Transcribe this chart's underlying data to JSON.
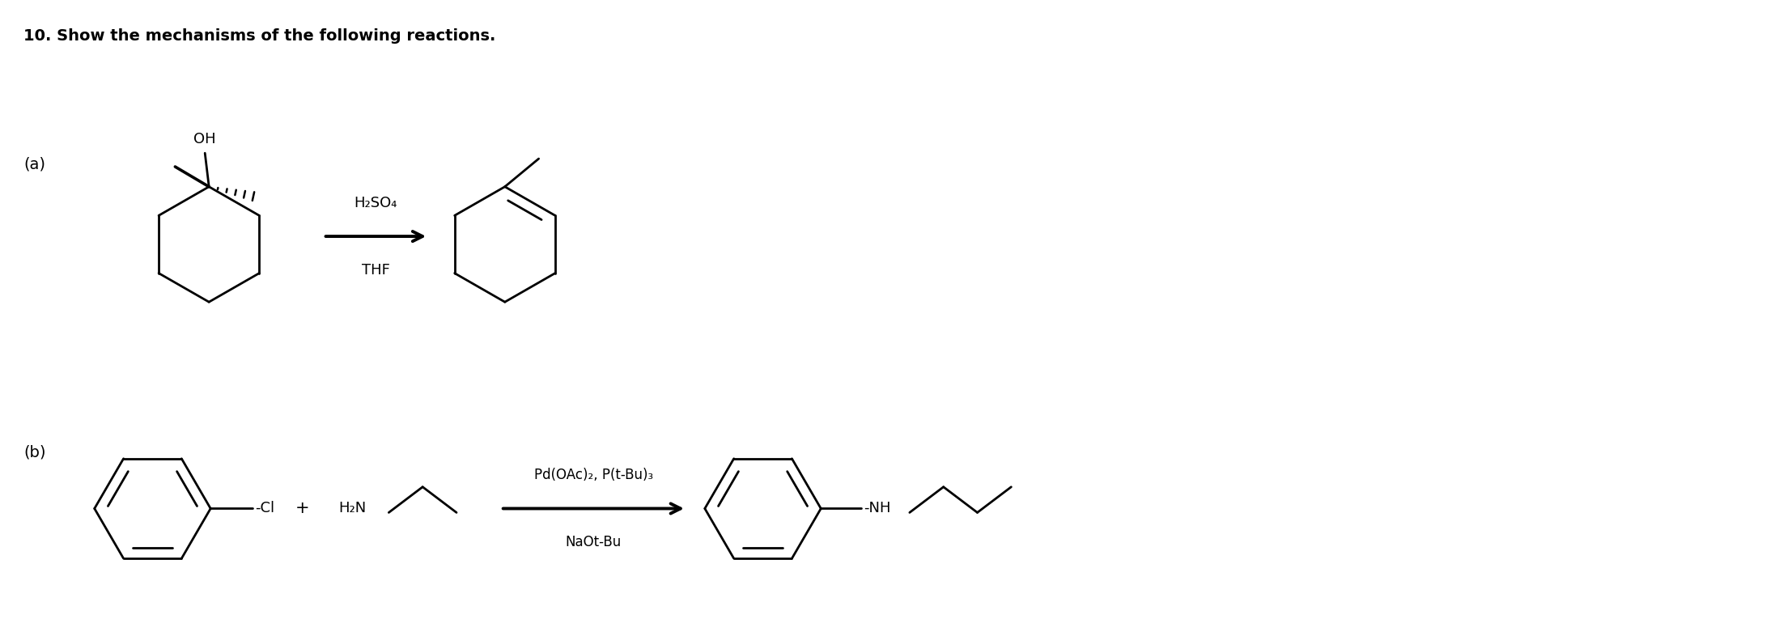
{
  "title": "10. Show the mechanisms of the following reactions.",
  "title_fontsize": 14,
  "title_fontweight": "bold",
  "background_color": "#ffffff",
  "label_a": "(a)",
  "label_b": "(b)",
  "label_fontsize": 14,
  "reagent_a_line1": "H₂SO₄",
  "reagent_a_line2": "THF",
  "reagent_b_line1": "Pd(OAc)₂, P(t-Bu)₃",
  "reagent_b_line2": "NaOt-Bu",
  "plus_sign": "+",
  "reactant_b_cl": "-Cl",
  "reactant_b_hn": "H₂N",
  "product_b_nh": "-NH",
  "line_color": "#000000",
  "line_width": 2.0
}
